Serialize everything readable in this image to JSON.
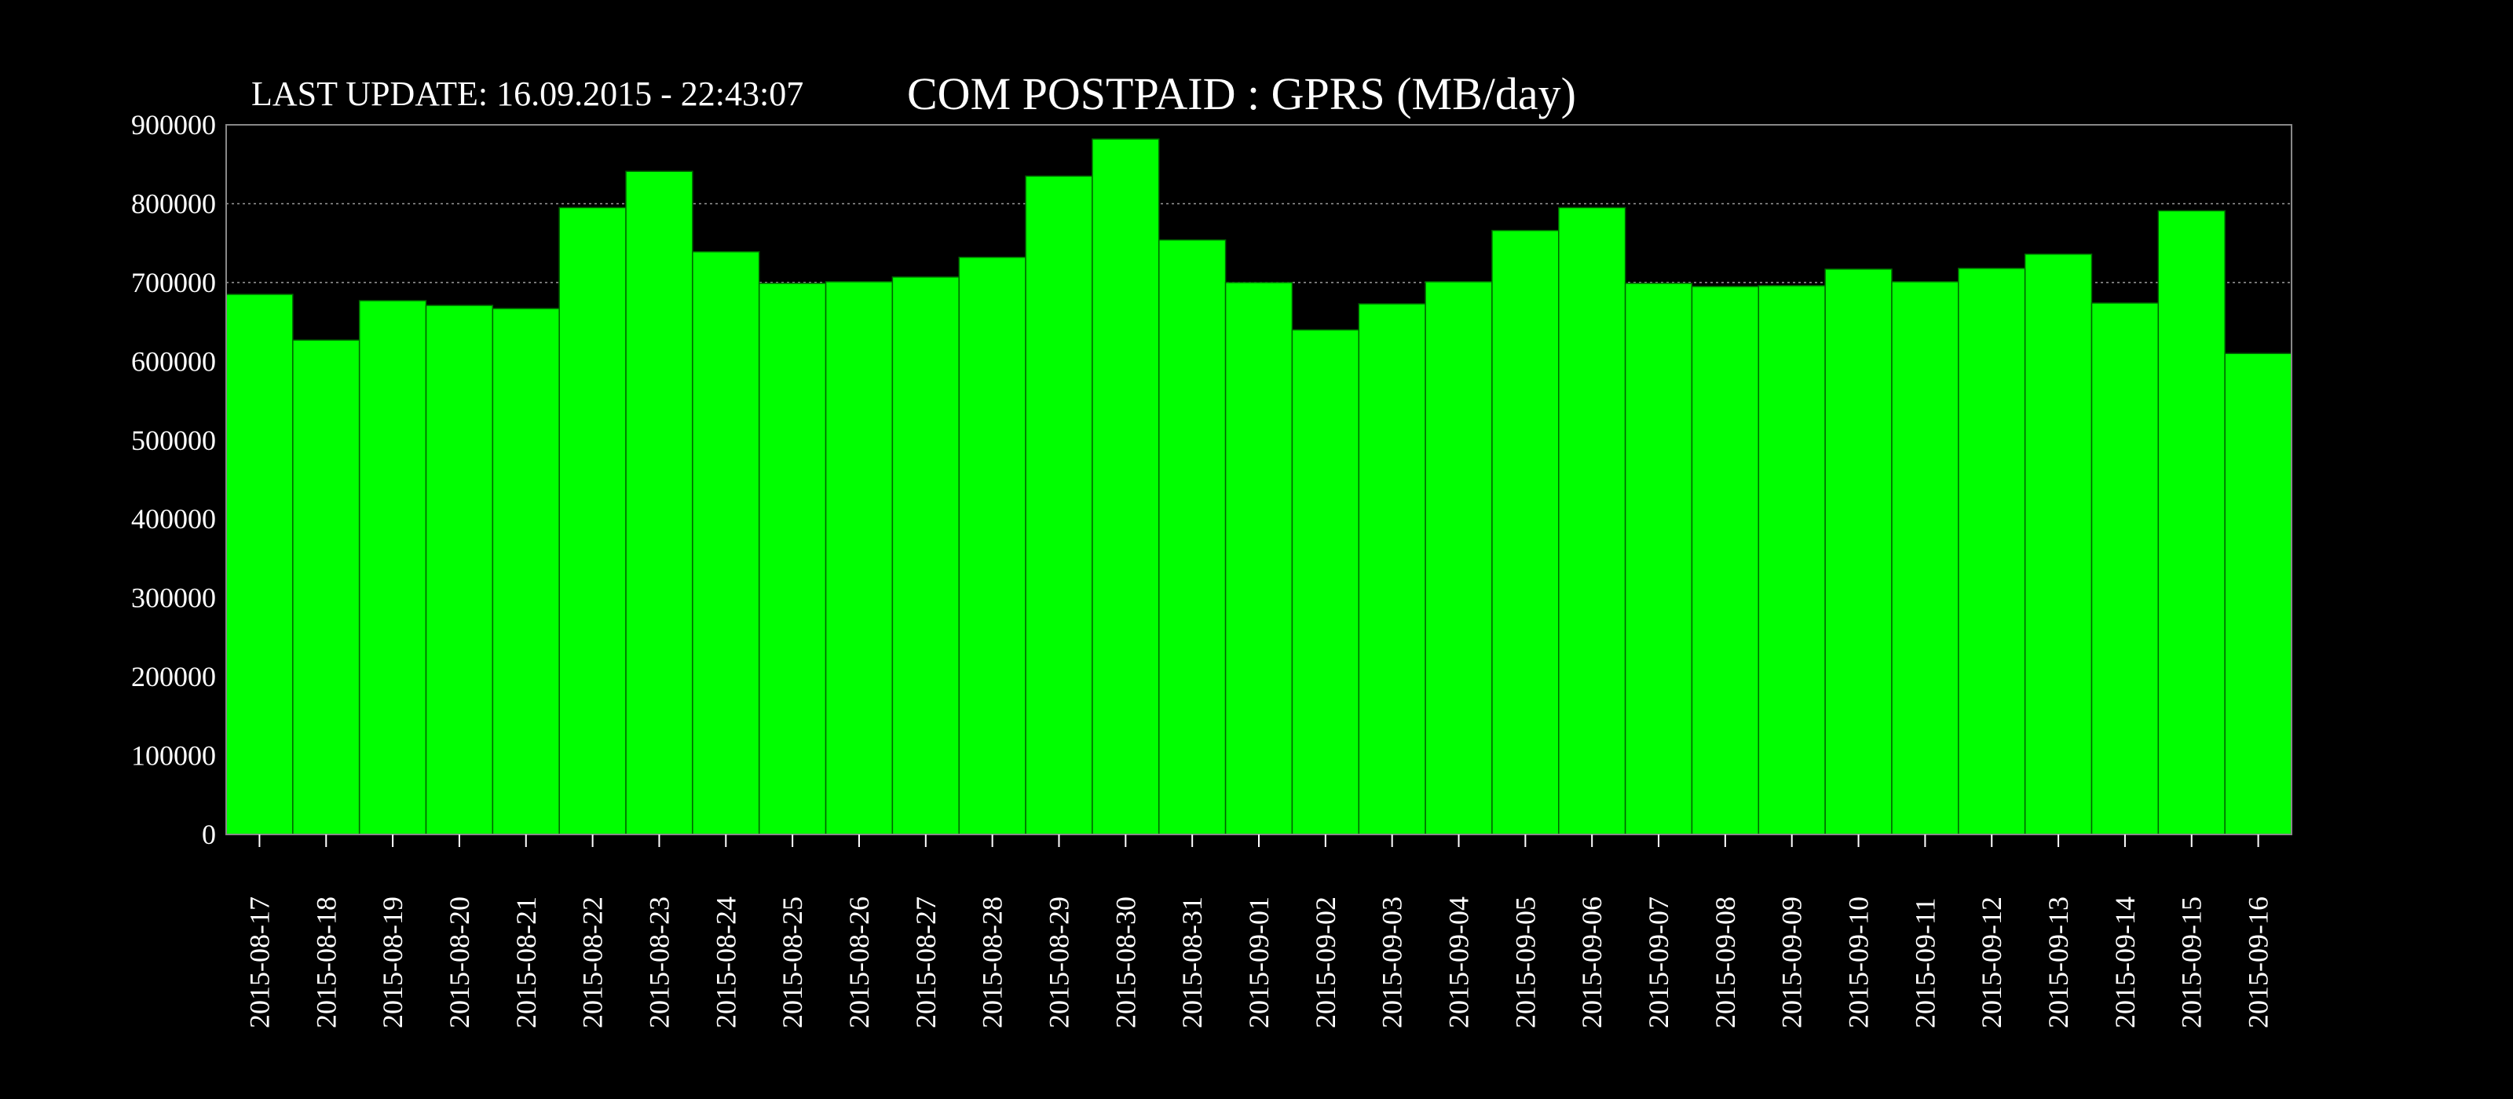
{
  "colors": {
    "background": "#000000",
    "bar_fill": "#00ff00",
    "bar_edge": "#006400",
    "text": "#ffffff",
    "frame": "#888888"
  },
  "header": {
    "last_update": "LAST UPDATE: 16.09.2015 - 22:43:07",
    "title": "COM POSTPAID : GPRS (MB/day)"
  },
  "chart_data": {
    "type": "bar",
    "title": "COM POSTPAID : GPRS (MB/day)",
    "xlabel": "",
    "ylabel": "",
    "ylim": [
      0,
      900000
    ],
    "yticks": [
      "0",
      "100000",
      "200000",
      "300000",
      "400000",
      "500000",
      "600000",
      "700000",
      "800000",
      "900000"
    ],
    "grid": "horizontal dotted",
    "categories": [
      "2015-08-17",
      "2015-08-18",
      "2015-08-19",
      "2015-08-20",
      "2015-08-21",
      "2015-08-22",
      "2015-08-23",
      "2015-08-24",
      "2015-08-25",
      "2015-08-26",
      "2015-08-27",
      "2015-08-28",
      "2015-08-29",
      "2015-08-30",
      "2015-08-31",
      "2015-09-01",
      "2015-09-02",
      "2015-09-03",
      "2015-09-04",
      "2015-09-05",
      "2015-09-06",
      "2015-09-07",
      "2015-09-08",
      "2015-09-09",
      "2015-09-10",
      "2015-09-11",
      "2015-09-12",
      "2015-09-13",
      "2015-09-14",
      "2015-09-15",
      "2015-09-16"
    ],
    "values": [
      685000,
      627000,
      677000,
      671000,
      667000,
      795000,
      841000,
      739000,
      699000,
      701000,
      707000,
      732000,
      835000,
      882000,
      754000,
      700000,
      640000,
      673000,
      701000,
      766000,
      795000,
      699000,
      695000,
      696000,
      717000,
      701000,
      718000,
      736000,
      674000,
      791000,
      610000
    ]
  }
}
